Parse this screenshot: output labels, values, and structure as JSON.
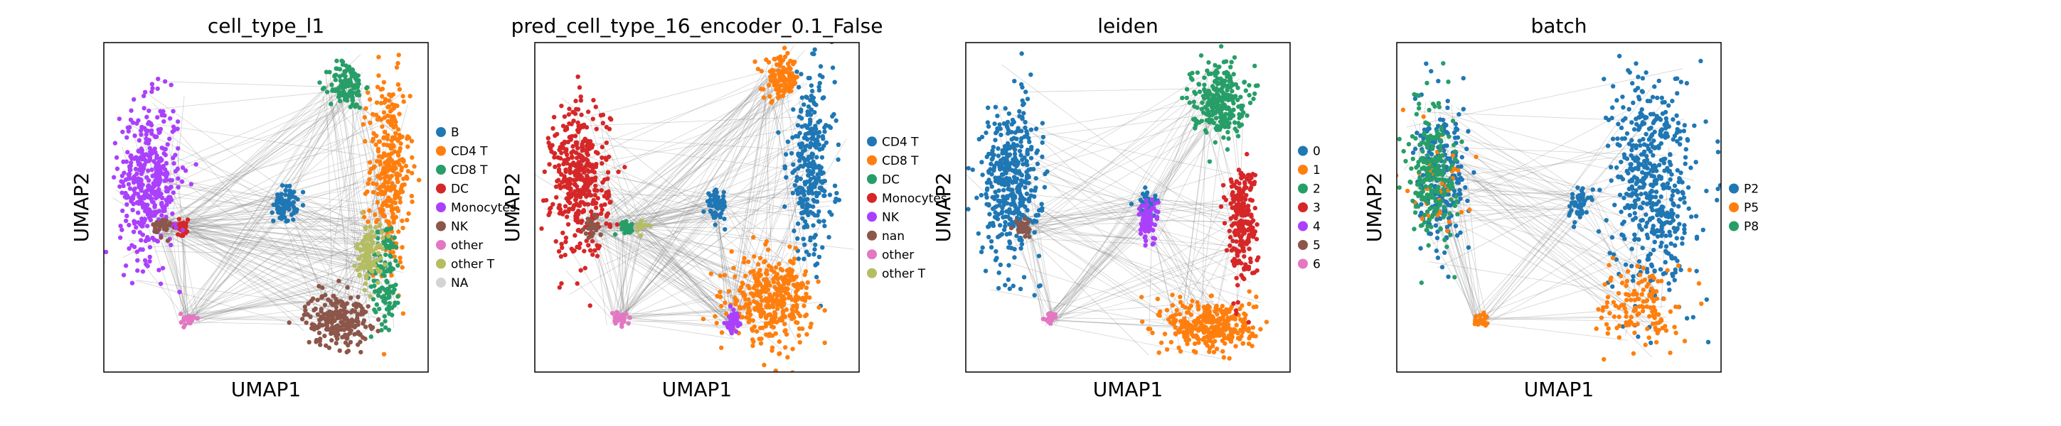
{
  "figure": {
    "panels": [
      {
        "title": "cell_type_l1",
        "xlabel": "UMAP1",
        "ylabel": "UMAP2",
        "legend": [
          {
            "label": "B",
            "color": "#1f77b4"
          },
          {
            "label": "CD4 T",
            "color": "#ff7f0e"
          },
          {
            "label": "CD8 T",
            "color": "#279e68"
          },
          {
            "label": "DC",
            "color": "#d62728"
          },
          {
            "label": "Monocytes",
            "color": "#aa40fc"
          },
          {
            "label": "NK",
            "color": "#8c564b"
          },
          {
            "label": "other",
            "color": "#e377c2"
          },
          {
            "label": "other T",
            "color": "#b5bd61"
          },
          {
            "label": "NA",
            "color": "#d3d3d3"
          }
        ]
      },
      {
        "title": "pred_cell_type_16_encoder_0.1_False",
        "xlabel": "UMAP1",
        "ylabel": "UMAP2",
        "legend": [
          {
            "label": "CD4 T",
            "color": "#1f77b4"
          },
          {
            "label": "CD8 T",
            "color": "#ff7f0e"
          },
          {
            "label": "DC",
            "color": "#279e68"
          },
          {
            "label": "Monocytes",
            "color": "#d62728"
          },
          {
            "label": "NK",
            "color": "#aa40fc"
          },
          {
            "label": "nan",
            "color": "#8c564b"
          },
          {
            "label": "other",
            "color": "#e377c2"
          },
          {
            "label": "other T",
            "color": "#b5bd61"
          }
        ]
      },
      {
        "title": "leiden",
        "xlabel": "UMAP1",
        "ylabel": "UMAP2",
        "legend": [
          {
            "label": "0",
            "color": "#1f77b4"
          },
          {
            "label": "1",
            "color": "#ff7f0e"
          },
          {
            "label": "2",
            "color": "#279e68"
          },
          {
            "label": "3",
            "color": "#d62728"
          },
          {
            "label": "4",
            "color": "#aa40fc"
          },
          {
            "label": "5",
            "color": "#8c564b"
          },
          {
            "label": "6",
            "color": "#e377c2"
          }
        ]
      },
      {
        "title": "batch",
        "xlabel": "UMAP1",
        "ylabel": "UMAP2",
        "legend": [
          {
            "label": "P2",
            "color": "#1f77b4"
          },
          {
            "label": "P5",
            "color": "#ff7f0e"
          },
          {
            "label": "P8",
            "color": "#279e68"
          }
        ]
      }
    ]
  },
  "chart_data": [
    {
      "type": "scatter",
      "title": "cell_type_l1",
      "xlabel": "UMAP1",
      "ylabel": "UMAP2",
      "grid": false,
      "legend_position": "right",
      "edges_color": "#808080",
      "series": [
        {
          "name": "B",
          "color": "#1f77b4",
          "clusters": [
            {
              "x": 5.6,
              "y": 5.1,
              "rx": 0.4,
              "ry": 0.6,
              "n": 80
            }
          ]
        },
        {
          "name": "CD4 T",
          "color": "#ff7f0e",
          "clusters": [
            {
              "x": 8.8,
              "y": 6.1,
              "rx": 0.7,
              "ry": 3.2,
              "n": 320
            }
          ]
        },
        {
          "name": "CD8 T",
          "color": "#279e68",
          "clusters": [
            {
              "x": 7.5,
              "y": 8.7,
              "rx": 0.6,
              "ry": 0.8,
              "n": 120
            },
            {
              "x": 8.7,
              "y": 3.0,
              "rx": 0.5,
              "ry": 1.8,
              "n": 120
            }
          ]
        },
        {
          "name": "DC",
          "color": "#d62728",
          "clusters": [
            {
              "x": 2.4,
              "y": 4.4,
              "rx": 0.3,
              "ry": 0.25,
              "n": 40
            }
          ]
        },
        {
          "name": "Monocytes",
          "color": "#aa40fc",
          "clusters": [
            {
              "x": 1.4,
              "y": 5.8,
              "rx": 1.0,
              "ry": 2.6,
              "n": 420
            }
          ]
        },
        {
          "name": "NK",
          "color": "#8c564b",
          "clusters": [
            {
              "x": 7.2,
              "y": 1.6,
              "rx": 1.1,
              "ry": 0.9,
              "n": 220
            },
            {
              "x": 1.8,
              "y": 4.4,
              "rx": 0.3,
              "ry": 0.35,
              "n": 30
            }
          ]
        },
        {
          "name": "other",
          "color": "#e377c2",
          "clusters": [
            {
              "x": 2.6,
              "y": 1.6,
              "rx": 0.25,
              "ry": 0.2,
              "n": 30
            }
          ]
        },
        {
          "name": "other T",
          "color": "#b5bd61",
          "clusters": [
            {
              "x": 8.2,
              "y": 3.6,
              "rx": 0.45,
              "ry": 1.0,
              "n": 100
            }
          ]
        },
        {
          "name": "NA",
          "color": "#d3d3d3",
          "clusters": []
        }
      ]
    },
    {
      "type": "scatter",
      "title": "pred_cell_type_16_encoder_0.1_False",
      "xlabel": "UMAP1",
      "ylabel": "UMAP2",
      "grid": false,
      "legend_position": "right",
      "edges_color": "#808080",
      "series": [
        {
          "name": "CD4 T",
          "color": "#1f77b4",
          "clusters": [
            {
              "x": 8.5,
              "y": 6.2,
              "rx": 0.8,
              "ry": 3.0,
              "n": 300
            },
            {
              "x": 5.6,
              "y": 5.1,
              "rx": 0.35,
              "ry": 0.5,
              "n": 60
            }
          ]
        },
        {
          "name": "CD8 T",
          "color": "#ff7f0e",
          "clusters": [
            {
              "x": 7.6,
              "y": 8.9,
              "rx": 0.6,
              "ry": 0.7,
              "n": 120
            },
            {
              "x": 7.3,
              "y": 2.2,
              "rx": 1.4,
              "ry": 1.4,
              "n": 360
            }
          ]
        },
        {
          "name": "DC",
          "color": "#279e68",
          "clusters": [
            {
              "x": 2.8,
              "y": 4.4,
              "rx": 0.3,
              "ry": 0.2,
              "n": 25
            }
          ]
        },
        {
          "name": "Monocytes",
          "color": "#d62728",
          "clusters": [
            {
              "x": 1.4,
              "y": 5.8,
              "rx": 1.0,
              "ry": 2.6,
              "n": 420
            }
          ]
        },
        {
          "name": "NK",
          "color": "#aa40fc",
          "clusters": [
            {
              "x": 6.1,
              "y": 1.5,
              "rx": 0.25,
              "ry": 0.4,
              "n": 40
            }
          ]
        },
        {
          "name": "nan",
          "color": "#8c564b",
          "clusters": [
            {
              "x": 1.8,
              "y": 4.4,
              "rx": 0.3,
              "ry": 0.35,
              "n": 25
            }
          ]
        },
        {
          "name": "other",
          "color": "#e377c2",
          "clusters": [
            {
              "x": 2.6,
              "y": 1.6,
              "rx": 0.25,
              "ry": 0.2,
              "n": 30
            }
          ]
        },
        {
          "name": "other T",
          "color": "#b5bd61",
          "clusters": [
            {
              "x": 3.2,
              "y": 4.4,
              "rx": 0.25,
              "ry": 0.2,
              "n": 15
            }
          ]
        }
      ]
    },
    {
      "type": "scatter",
      "title": "leiden",
      "xlabel": "UMAP1",
      "ylabel": "UMAP2",
      "grid": false,
      "legend_position": "right",
      "edges_color": "#808080",
      "series": [
        {
          "name": "0",
          "color": "#1f77b4",
          "clusters": [
            {
              "x": 1.4,
              "y": 5.8,
              "rx": 1.0,
              "ry": 2.6,
              "n": 420
            },
            {
              "x": 5.6,
              "y": 5.1,
              "rx": 0.35,
              "ry": 0.5,
              "n": 40
            }
          ]
        },
        {
          "name": "1",
          "color": "#ff7f0e",
          "clusters": [
            {
              "x": 7.6,
              "y": 1.4,
              "rx": 1.5,
              "ry": 0.9,
              "n": 340
            }
          ]
        },
        {
          "name": "2",
          "color": "#279e68",
          "clusters": [
            {
              "x": 7.8,
              "y": 8.3,
              "rx": 0.9,
              "ry": 1.2,
              "n": 260
            }
          ]
        },
        {
          "name": "3",
          "color": "#d62728",
          "clusters": [
            {
              "x": 8.5,
              "y": 4.6,
              "rx": 0.5,
              "ry": 2.0,
              "n": 240
            }
          ]
        },
        {
          "name": "4",
          "color": "#aa40fc",
          "clusters": [
            {
              "x": 5.6,
              "y": 4.6,
              "rx": 0.35,
              "ry": 0.7,
              "n": 80
            }
          ]
        },
        {
          "name": "5",
          "color": "#8c564b",
          "clusters": [
            {
              "x": 1.8,
              "y": 4.4,
              "rx": 0.3,
              "ry": 0.35,
              "n": 25
            }
          ]
        },
        {
          "name": "6",
          "color": "#e377c2",
          "clusters": [
            {
              "x": 2.6,
              "y": 1.6,
              "rx": 0.25,
              "ry": 0.2,
              "n": 30
            }
          ]
        }
      ]
    },
    {
      "type": "scatter",
      "title": "batch",
      "xlabel": "UMAP1",
      "ylabel": "UMAP2",
      "grid": false,
      "legend_position": "right",
      "edges_color": "#808080",
      "series": [
        {
          "name": "P2",
          "color": "#1f77b4",
          "clusters": [
            {
              "x": 7.9,
              "y": 5.8,
              "rx": 1.4,
              "ry": 3.8,
              "n": 520
            },
            {
              "x": 1.4,
              "y": 5.8,
              "rx": 0.9,
              "ry": 2.5,
              "n": 220
            },
            {
              "x": 5.6,
              "y": 5.1,
              "rx": 0.35,
              "ry": 0.5,
              "n": 50
            }
          ]
        },
        {
          "name": "P5",
          "color": "#ff7f0e",
          "clusters": [
            {
              "x": 7.5,
              "y": 2.0,
              "rx": 1.3,
              "ry": 1.4,
              "n": 140
            },
            {
              "x": 2.6,
              "y": 1.6,
              "rx": 0.25,
              "ry": 0.2,
              "n": 25
            },
            {
              "x": 1.3,
              "y": 5.9,
              "rx": 0.9,
              "ry": 2.4,
              "n": 40
            }
          ]
        },
        {
          "name": "P8",
          "color": "#279e68",
          "clusters": [
            {
              "x": 1.1,
              "y": 6.1,
              "rx": 0.8,
              "ry": 2.3,
              "n": 220
            }
          ]
        }
      ]
    }
  ]
}
